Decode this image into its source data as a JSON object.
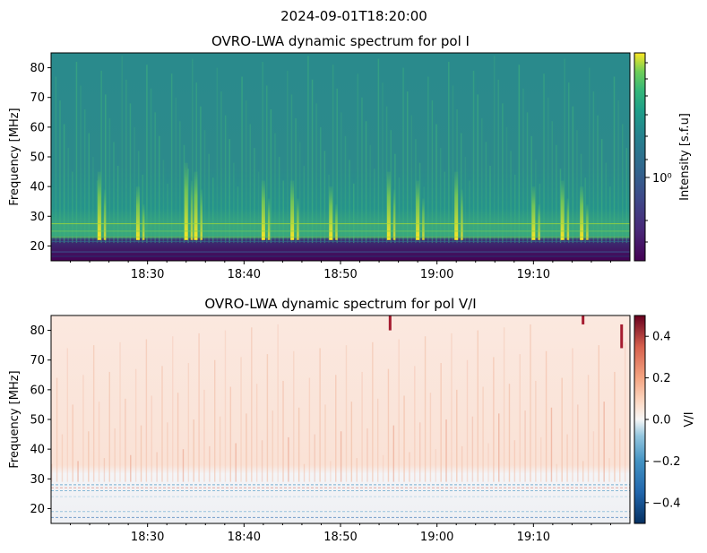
{
  "suptitle": "2024-09-01T18:20:00",
  "chart_data": [
    {
      "type": "heatmap",
      "title": "OVRO-LWA dynamic spectrum for pol I",
      "xlabel": "",
      "ylabel": "Frequency [MHz]",
      "x_range": [
        "18:20:00",
        "19:20:00"
      ],
      "x_ticks": [
        "18:30",
        "18:40",
        "18:50",
        "19:00",
        "19:10"
      ],
      "ylim": [
        15,
        85
      ],
      "y_ticks": [
        "20",
        "30",
        "40",
        "50",
        "60",
        "70",
        "80"
      ],
      "colormap": "viridis",
      "colorbar": {
        "label": "Intensity [s.f.u]",
        "scale": "log",
        "tick_labels": [
          "10⁰"
        ]
      },
      "bright_bursts": [
        {
          "time": "18:25",
          "freq_range": [
            22,
            45
          ]
        },
        {
          "time": "18:29",
          "freq_range": [
            22,
            40
          ]
        },
        {
          "time": "18:34",
          "freq_range": [
            22,
            48
          ]
        },
        {
          "time": "18:35",
          "freq_range": [
            22,
            45
          ]
        },
        {
          "time": "18:42",
          "freq_range": [
            22,
            42
          ]
        },
        {
          "time": "18:45",
          "freq_range": [
            22,
            42
          ]
        },
        {
          "time": "18:49",
          "freq_range": [
            22,
            40
          ]
        },
        {
          "time": "18:55",
          "freq_range": [
            22,
            45
          ]
        },
        {
          "time": "18:58",
          "freq_range": [
            22,
            42
          ]
        },
        {
          "time": "19:02",
          "freq_range": [
            22,
            45
          ]
        },
        {
          "time": "19:10",
          "freq_range": [
            22,
            40
          ]
        },
        {
          "time": "19:13",
          "freq_range": [
            22,
            42
          ]
        },
        {
          "time": "19:15",
          "freq_range": [
            22,
            40
          ]
        }
      ]
    },
    {
      "type": "heatmap",
      "title": "OVRO-LWA dynamic spectrum for pol V/I",
      "xlabel": "",
      "ylabel": "Frequency [MHz]",
      "x_range": [
        "18:20:00",
        "19:20:00"
      ],
      "x_ticks": [
        "18:30",
        "18:40",
        "18:50",
        "19:00",
        "19:10"
      ],
      "ylim": [
        15,
        85
      ],
      "y_ticks": [
        "20",
        "30",
        "40",
        "50",
        "60",
        "70",
        "80"
      ],
      "colormap": "RdBu_r",
      "colorbar": {
        "label": "V/I",
        "scale": "linear",
        "range": [
          -0.5,
          0.5
        ],
        "tick_labels": [
          "−0.4",
          "−0.2",
          "0.0",
          "0.2",
          "0.4"
        ]
      }
    }
  ]
}
